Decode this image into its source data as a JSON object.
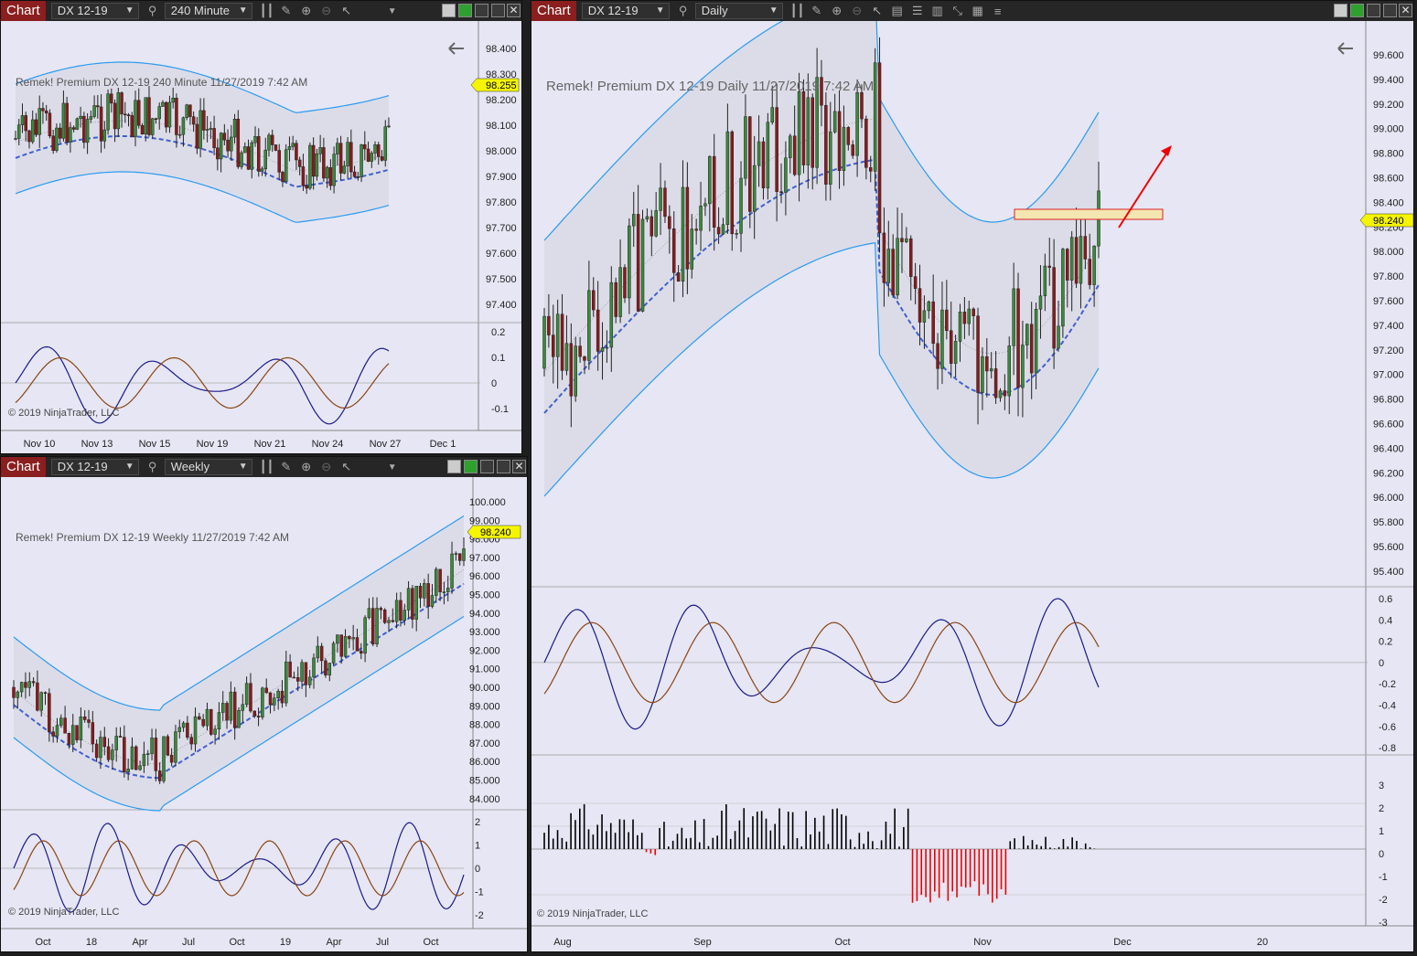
{
  "app": {
    "tag": "Chart",
    "copyright": "© 2019 NinjaTrader, LLC"
  },
  "colors": {
    "bg": "#e6e6f4",
    "band": "#2a9bef",
    "mean": "#4060d0",
    "up": "#3a8a3a",
    "down": "#8a1a1a",
    "price": "#f5f500",
    "osc1": "#1a1a8a",
    "osc2": "#8b4513"
  },
  "w1": {
    "instrument": "DX 12-19",
    "period": "240 Minute",
    "label": "Remek!  Premium  DX 12-19  240 Minute  11/27/2019 7:42 AM",
    "price": "98.255",
    "yticks": [
      "98.400",
      "98.300",
      "98.200",
      "98.100",
      "98.000",
      "97.900",
      "97.800",
      "97.700",
      "97.600",
      "97.500",
      "97.400"
    ],
    "oscticks": [
      "0.2",
      "0.1",
      "0",
      "-0.1"
    ],
    "xticks": [
      "Nov 10",
      "Nov 13",
      "Nov 15",
      "Nov 19",
      "Nov 21",
      "Nov 24",
      "Nov 27",
      "Dec 1"
    ]
  },
  "w2": {
    "instrument": "DX 12-19",
    "period": "Weekly",
    "label": "Remek!  Premium  DX 12-19  Weekly  11/27/2019 7:42 AM",
    "price": "98.240",
    "yticks": [
      "100.000",
      "99.000",
      "98.000",
      "97.000",
      "96.000",
      "95.000",
      "94.000",
      "93.000",
      "92.000",
      "91.000",
      "90.000",
      "89.000",
      "88.000",
      "87.000",
      "86.000",
      "85.000",
      "84.000"
    ],
    "oscticks": [
      "2",
      "1",
      "0",
      "-1",
      "-2"
    ],
    "xticks": [
      "Oct",
      "18",
      "Apr",
      "Jul",
      "Oct",
      "19",
      "Apr",
      "Jul",
      "Oct"
    ]
  },
  "w3": {
    "instrument": "DX 12-19",
    "period": "Daily",
    "label": "Remek!  Premium  DX 12-19  Daily  11/27/2019 7:42 AM",
    "price": "98.240",
    "yticks": [
      "99.600",
      "99.400",
      "99.200",
      "99.000",
      "98.800",
      "98.600",
      "98.400",
      "98.200",
      "98.000",
      "97.800",
      "97.600",
      "97.400",
      "97.200",
      "97.000",
      "96.800",
      "96.600",
      "96.400",
      "96.200",
      "96.000",
      "95.800",
      "95.600",
      "95.400"
    ],
    "oscticks": [
      "0.6",
      "0.4",
      "0.2",
      "0",
      "-0.2",
      "-0.4",
      "-0.6",
      "-0.8"
    ],
    "histticks": [
      "3",
      "2",
      "1",
      "0",
      "-1",
      "-2",
      "-3"
    ],
    "xticks": [
      "Aug",
      "Sep",
      "Oct",
      "Nov",
      "Dec",
      "20"
    ]
  }
}
